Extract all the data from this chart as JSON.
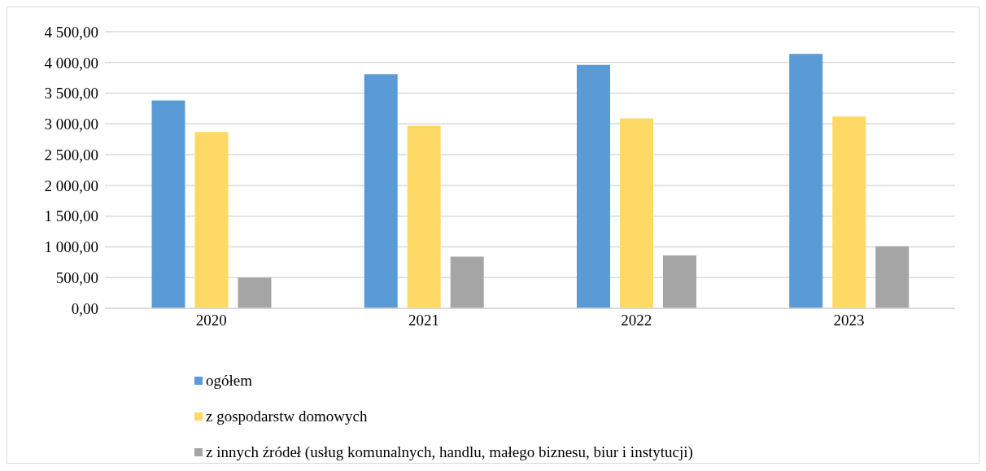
{
  "chart_data": {
    "type": "bar",
    "categories": [
      "2020",
      "2021",
      "2022",
      "2023"
    ],
    "series": [
      {
        "name": "ogółem",
        "color": "#5b9bd5",
        "values": [
          3380,
          3810,
          3960,
          4140
        ]
      },
      {
        "name": "z gospodarstw domowych",
        "color": "#ffd966",
        "values": [
          2870,
          2970,
          3090,
          3120
        ]
      },
      {
        "name": "z innych źródeł (usług komunalnych, handlu, małego biznesu, biur i instytucji)",
        "color": "#a5a5a5",
        "values": [
          500,
          840,
          860,
          1010
        ]
      }
    ],
    "ylim": [
      0,
      4500
    ],
    "yticks": [
      {
        "value": 0,
        "label": "0,00"
      },
      {
        "value": 500,
        "label": "500,00"
      },
      {
        "value": 1000,
        "label": "1 000,00"
      },
      {
        "value": 1500,
        "label": "1 500,00"
      },
      {
        "value": 2000,
        "label": "2 000,00"
      },
      {
        "value": 2500,
        "label": "2 500,00"
      },
      {
        "value": 3000,
        "label": "3 000,00"
      },
      {
        "value": 3500,
        "label": "3 500,00"
      },
      {
        "value": 4000,
        "label": "4 000,00"
      },
      {
        "value": 4500,
        "label": "4 500,00"
      }
    ],
    "grid": "y",
    "legend": "bottom"
  }
}
